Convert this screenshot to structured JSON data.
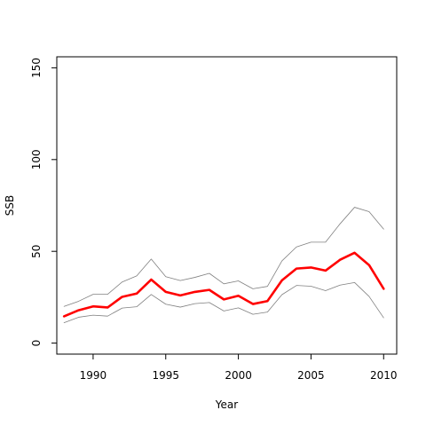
{
  "chart_data": {
    "type": "line",
    "title": "",
    "xlabel": "Year",
    "ylabel": "SSB",
    "xlim": [
      1987.5,
      2010.9
    ],
    "ylim": [
      -6,
      156
    ],
    "x_ticks": [
      "1990",
      "1995",
      "2000",
      "2005",
      "2010"
    ],
    "y_ticks": [
      "0",
      "50",
      "100",
      "150"
    ],
    "grid": false,
    "x": [
      1988,
      1989,
      1990,
      1991,
      1992,
      1993,
      1994,
      1995,
      1996,
      1997,
      1998,
      1999,
      2000,
      2001,
      2002,
      2003,
      2004,
      2005,
      2006,
      2007,
      2008,
      2009,
      2010
    ],
    "series": [
      {
        "role": "upper",
        "color": "#808080",
        "values": [
          20,
          22.8,
          26.6,
          26.6,
          33.3,
          36.6,
          45.8,
          36.2,
          34.1,
          35.8,
          38,
          32.3,
          33.9,
          29.6,
          30.9,
          44.8,
          52.4,
          55,
          55,
          65,
          74,
          71.6,
          62.1
        ]
      },
      {
        "role": "estimate",
        "color": "#ff0000",
        "values": [
          14.6,
          17.9,
          20,
          19.4,
          25.2,
          27,
          34.6,
          27.9,
          26,
          27.9,
          29,
          23.8,
          25.8,
          21.3,
          22.9,
          34.2,
          40.6,
          41.2,
          39.5,
          45.4,
          49.2,
          42.5,
          29.6
        ]
      },
      {
        "role": "lower",
        "color": "#808080",
        "values": [
          11.1,
          14.1,
          15.2,
          14.7,
          19.1,
          19.8,
          26.5,
          21.2,
          19.6,
          21.5,
          22.1,
          17.5,
          19.2,
          15.7,
          16.9,
          26.4,
          31.4,
          31,
          28.6,
          31.6,
          33,
          25.4,
          13.8
        ]
      }
    ]
  }
}
